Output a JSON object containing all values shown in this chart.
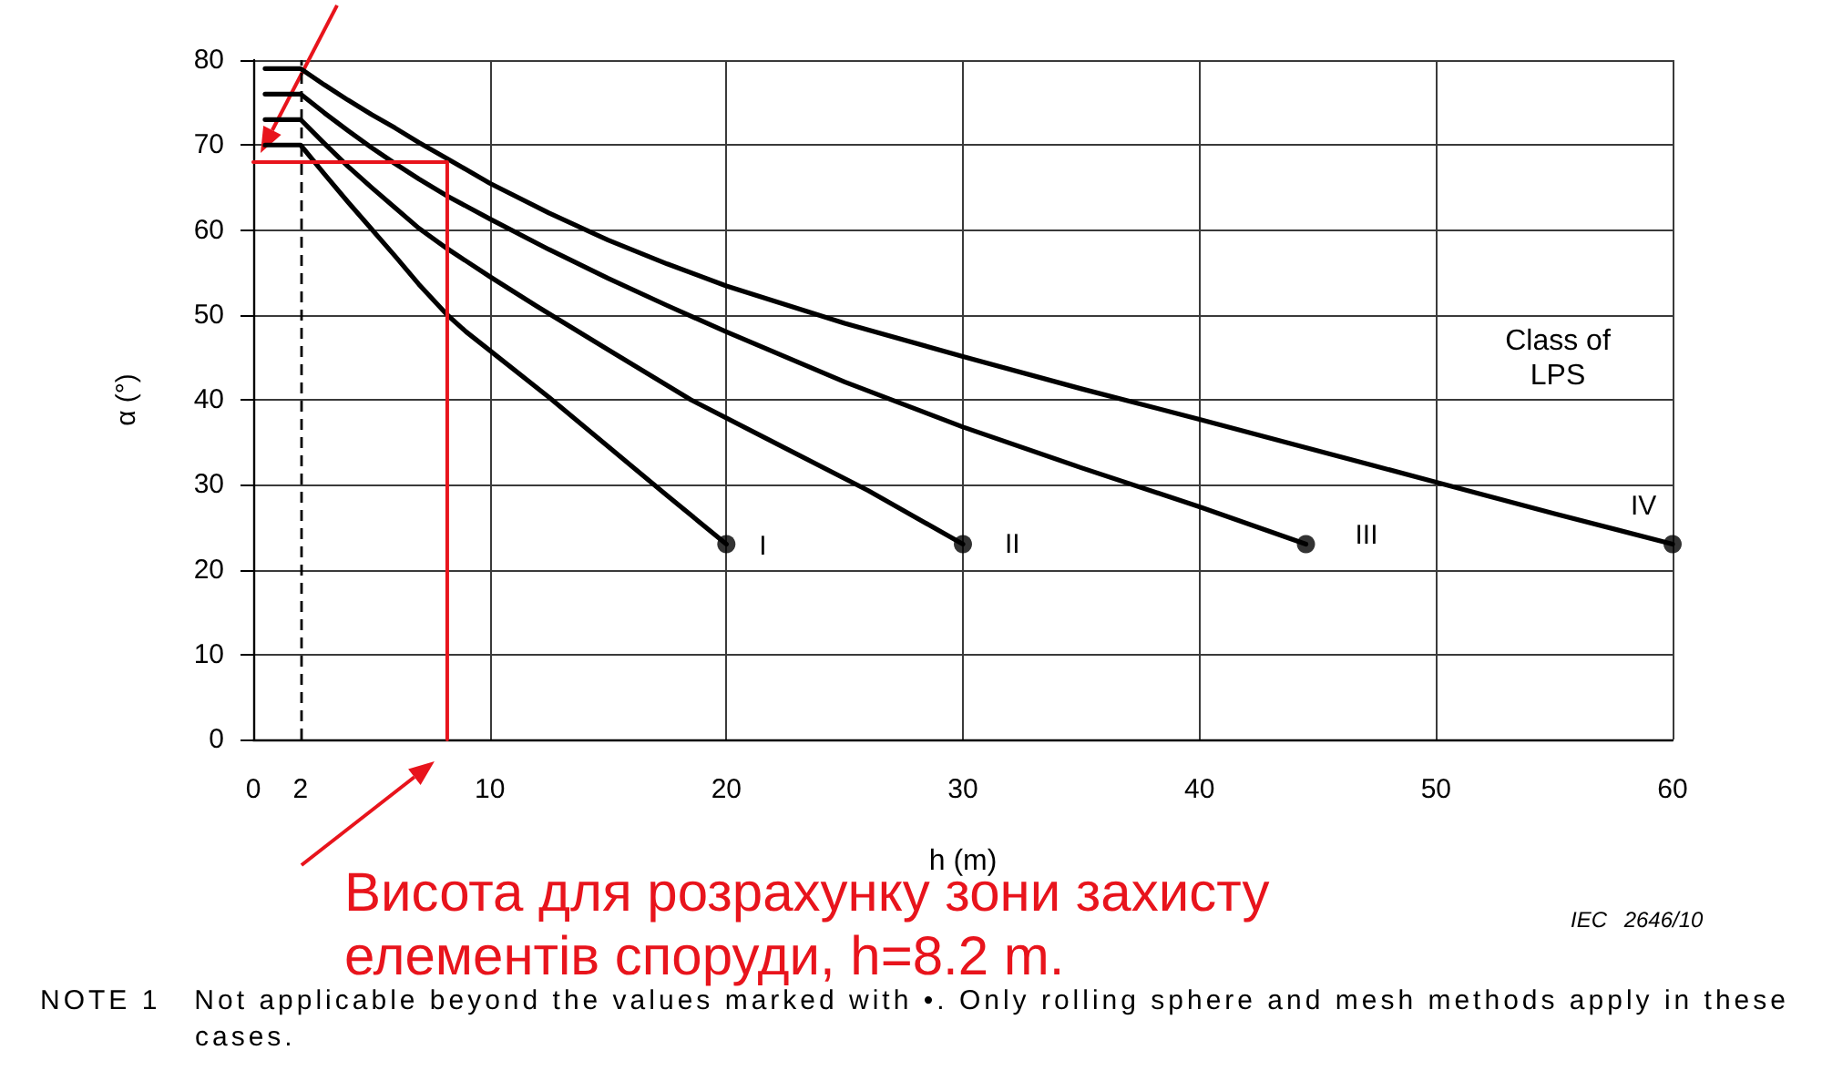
{
  "chart_data": {
    "type": "line",
    "xlabel": "h (m)",
    "ylabel": "α (°)",
    "annotations": [
      "Class of LPS",
      "Висота для розрахунку зони захисту елементів споруди, h=8.2 m.",
      "IEC 2646/10",
      "NOTE 1   Not applicable beyond the values marked with •. Only rolling sphere and mesh methods apply in these cases."
    ],
    "xlim": [
      0,
      60
    ],
    "xticks": [
      0,
      2,
      10,
      20,
      30,
      40,
      50,
      60
    ],
    "ylim": [
      0,
      80
    ],
    "yticks": [
      0,
      10,
      20,
      30,
      40,
      50,
      60,
      70,
      80
    ],
    "grid": true,
    "marker": "none",
    "line_style": "solid",
    "ref_lines": [
      {
        "axis": "x",
        "value": 2,
        "color": "#000000",
        "line_style": "dashed"
      }
    ],
    "series": [
      {
        "name": "I",
        "color": "#000000",
        "x": [
          0.5,
          2,
          3,
          4,
          5,
          6,
          7,
          8.2,
          9,
          10,
          12.5,
          15,
          17.5,
          20
        ],
        "values": [
          70,
          70,
          66.6,
          63.3,
          60.1,
          56.9,
          53.6,
          50,
          48,
          45.8,
          40.3,
          34.5,
          28.7,
          23
        ]
      },
      {
        "name": "II",
        "color": "#000000",
        "x": [
          0.5,
          2,
          3,
          4,
          5,
          6,
          7,
          8.2,
          10,
          12,
          15,
          18.5,
          22,
          26,
          30
        ],
        "values": [
          73,
          73,
          70.2,
          67.5,
          65,
          62.6,
          60.2,
          57.8,
          54.5,
          51,
          45.9,
          40,
          35,
          29.3,
          23
        ]
      },
      {
        "name": "III",
        "color": "#000000",
        "x": [
          0.5,
          2,
          3,
          4,
          5,
          6,
          7,
          8.2,
          10,
          12.5,
          15,
          17.5,
          20,
          25,
          30,
          35,
          40,
          44.5
        ],
        "values": [
          76,
          76,
          73.8,
          71.7,
          69.7,
          67.8,
          66,
          64,
          61.3,
          57.7,
          54.3,
          51.1,
          48,
          42.1,
          36.8,
          32,
          27.4,
          23
        ]
      },
      {
        "name": "IV",
        "color": "#000000",
        "x": [
          0.5,
          2,
          3,
          4,
          5,
          6,
          7,
          8.2,
          10,
          12.5,
          15,
          17.5,
          20,
          25,
          30,
          35,
          40,
          45,
          50,
          55,
          60
        ],
        "values": [
          79,
          79,
          77.1,
          75.3,
          73.6,
          72,
          70.3,
          68.4,
          65.5,
          62,
          58.8,
          56,
          53.4,
          49,
          45.1,
          41.3,
          37.7,
          34,
          30.3,
          26.6,
          23
        ]
      },
      {
        "type": "scatter",
        "color": "#000000",
        "marker": "circle",
        "x": [
          20,
          30,
          44.5,
          60
        ],
        "values": [
          23,
          23,
          23,
          23
        ]
      },
      {
        "color": "#e8141c",
        "x": [
          0,
          8.2,
          8.2
        ],
        "values": [
          68,
          68,
          0
        ]
      }
    ]
  }
}
